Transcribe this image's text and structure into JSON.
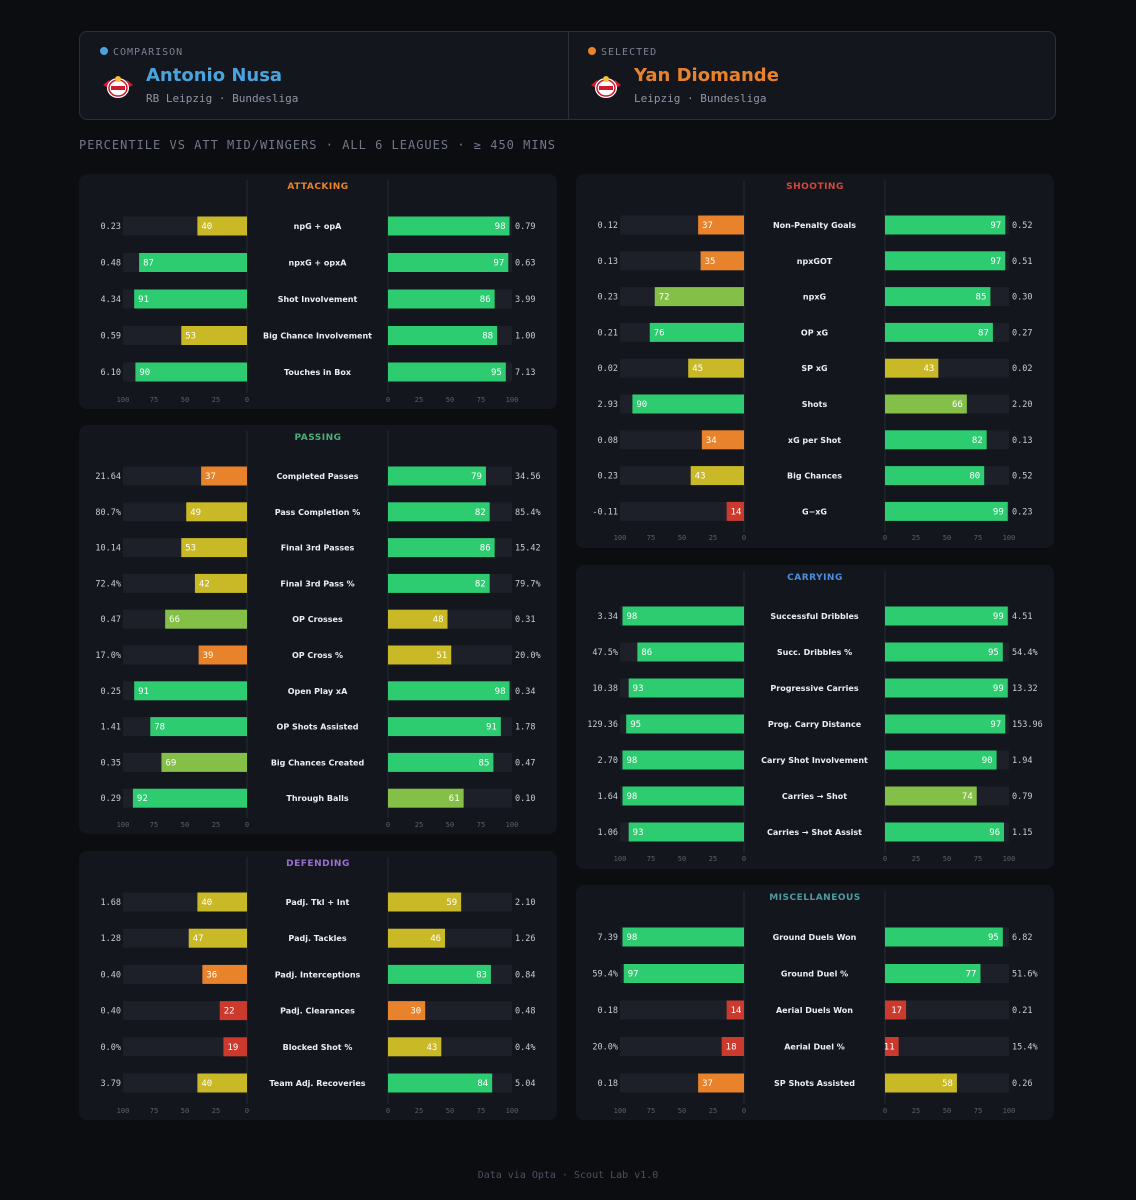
{
  "header": {
    "comparison": {
      "tag": "COMPARISON",
      "name": "Antonio Nusa",
      "club": "RB Leipzig · Bundesliga",
      "color": "#4ba3dd"
    },
    "selected": {
      "tag": "SELECTED",
      "name": "Yan Diomande",
      "club": "Leipzig · Bundesliga",
      "color": "#e8832b"
    },
    "logo_icon": "rb-leipzig-crest-icon"
  },
  "subtitle": "PERCENTILE VS ATT MID/WINGERS · ALL 6 LEAGUES · ≥ 450 MINS",
  "footer": "Data via Opta · Scout Lab v1.0",
  "colors": {
    "green": "#2ecc71",
    "lime": "#84bf48",
    "yellow": "#c9b926",
    "orange": "#e8832b",
    "red": "#cc3a2e",
    "track": "#1d2029",
    "panel": "#13161c"
  },
  "chart_data": [
    {
      "type": "bar",
      "id": "attacking",
      "title": "ATTACKING",
      "title_color": "#e8832b",
      "xlim": [
        0,
        100
      ],
      "xticks": [
        100,
        75,
        50,
        25,
        0
      ],
      "metrics": [
        {
          "label": "npG + opA",
          "left_value": "0.23",
          "left_pct": 40,
          "right_pct": 98,
          "right_value": "0.79"
        },
        {
          "label": "npxG + opxA",
          "left_value": "0.48",
          "left_pct": 87,
          "right_pct": 97,
          "right_value": "0.63"
        },
        {
          "label": "Shot Involvement",
          "left_value": "4.34",
          "left_pct": 91,
          "right_pct": 86,
          "right_value": "3.99"
        },
        {
          "label": "Big Chance Involvement",
          "left_value": "0.59",
          "left_pct": 53,
          "right_pct": 88,
          "right_value": "1.00"
        },
        {
          "label": "Touches in Box",
          "left_value": "6.10",
          "left_pct": 90,
          "right_pct": 95,
          "right_value": "7.13"
        }
      ]
    },
    {
      "type": "bar",
      "id": "passing",
      "title": "PASSING",
      "title_color": "#4caf78",
      "xlim": [
        0,
        100
      ],
      "xticks": [
        100,
        75,
        50,
        25,
        0
      ],
      "metrics": [
        {
          "label": "Completed Passes",
          "left_value": "21.64",
          "left_pct": 37,
          "right_pct": 79,
          "right_value": "34.56"
        },
        {
          "label": "Pass Completion %",
          "left_value": "80.7%",
          "left_pct": 49,
          "right_pct": 82,
          "right_value": "85.4%"
        },
        {
          "label": "Final 3rd Passes",
          "left_value": "10.14",
          "left_pct": 53,
          "right_pct": 86,
          "right_value": "15.42"
        },
        {
          "label": "Final 3rd Pass %",
          "left_value": "72.4%",
          "left_pct": 42,
          "right_pct": 82,
          "right_value": "79.7%"
        },
        {
          "label": "OP Crosses",
          "left_value": "0.47",
          "left_pct": 66,
          "right_pct": 48,
          "right_value": "0.31"
        },
        {
          "label": "OP Cross %",
          "left_value": "17.0%",
          "left_pct": 39,
          "right_pct": 51,
          "right_value": "20.0%"
        },
        {
          "label": "Open Play xA",
          "left_value": "0.25",
          "left_pct": 91,
          "right_pct": 98,
          "right_value": "0.34"
        },
        {
          "label": "OP Shots Assisted",
          "left_value": "1.41",
          "left_pct": 78,
          "right_pct": 91,
          "right_value": "1.78"
        },
        {
          "label": "Big Chances Created",
          "left_value": "0.35",
          "left_pct": 69,
          "right_pct": 85,
          "right_value": "0.47"
        },
        {
          "label": "Through Balls",
          "left_value": "0.29",
          "left_pct": 92,
          "right_pct": 61,
          "right_value": "0.10"
        }
      ]
    },
    {
      "type": "bar",
      "id": "defending",
      "title": "DEFENDING",
      "title_color": "#9a6fd3",
      "xlim": [
        0,
        100
      ],
      "xticks": [
        100,
        75,
        50,
        25,
        0
      ],
      "metrics": [
        {
          "label": "Padj. Tkl + Int",
          "left_value": "1.68",
          "left_pct": 40,
          "right_pct": 59,
          "right_value": "2.10"
        },
        {
          "label": "Padj. Tackles",
          "left_value": "1.28",
          "left_pct": 47,
          "right_pct": 46,
          "right_value": "1.26"
        },
        {
          "label": "Padj. Interceptions",
          "left_value": "0.40",
          "left_pct": 36,
          "right_pct": 83,
          "right_value": "0.84"
        },
        {
          "label": "Padj. Clearances",
          "left_value": "0.40",
          "left_pct": 22,
          "right_pct": 30,
          "right_value": "0.48"
        },
        {
          "label": "Blocked Shot %",
          "left_value": "0.0%",
          "left_pct": 19,
          "right_pct": 43,
          "right_value": "0.4%"
        },
        {
          "label": "Team Adj. Recoveries",
          "left_value": "3.79",
          "left_pct": 40,
          "right_pct": 84,
          "right_value": "5.04"
        }
      ]
    },
    {
      "type": "bar",
      "id": "shooting",
      "title": "SHOOTING",
      "title_color": "#d2483c",
      "xlim": [
        0,
        100
      ],
      "xticks": [
        100,
        75,
        50,
        25,
        0
      ],
      "metrics": [
        {
          "label": "Non-Penalty Goals",
          "left_value": "0.12",
          "left_pct": 37,
          "right_pct": 97,
          "right_value": "0.52"
        },
        {
          "label": "npxGOT",
          "left_value": "0.13",
          "left_pct": 35,
          "right_pct": 97,
          "right_value": "0.51"
        },
        {
          "label": "npxG",
          "left_value": "0.23",
          "left_pct": 72,
          "right_pct": 85,
          "right_value": "0.30"
        },
        {
          "label": "OP xG",
          "left_value": "0.21",
          "left_pct": 76,
          "right_pct": 87,
          "right_value": "0.27"
        },
        {
          "label": "SP xG",
          "left_value": "0.02",
          "left_pct": 45,
          "right_pct": 43,
          "right_value": "0.02"
        },
        {
          "label": "Shots",
          "left_value": "2.93",
          "left_pct": 90,
          "right_pct": 66,
          "right_value": "2.20"
        },
        {
          "label": "xG per Shot",
          "left_value": "0.08",
          "left_pct": 34,
          "right_pct": 82,
          "right_value": "0.13"
        },
        {
          "label": "Big Chances",
          "left_value": "0.23",
          "left_pct": 43,
          "right_pct": 80,
          "right_value": "0.52"
        },
        {
          "label": "G−xG",
          "left_value": "-0.11",
          "left_pct": 14,
          "right_pct": 99,
          "right_value": "0.23"
        }
      ]
    },
    {
      "type": "bar",
      "id": "carrying",
      "title": "CARRYING",
      "title_color": "#4a8fe0",
      "xlim": [
        0,
        100
      ],
      "xticks": [
        100,
        75,
        50,
        25,
        0
      ],
      "metrics": [
        {
          "label": "Successful Dribbles",
          "left_value": "3.34",
          "left_pct": 98,
          "right_pct": 99,
          "right_value": "4.51"
        },
        {
          "label": "Succ. Dribbles %",
          "left_value": "47.5%",
          "left_pct": 86,
          "right_pct": 95,
          "right_value": "54.4%"
        },
        {
          "label": "Progressive Carries",
          "left_value": "10.38",
          "left_pct": 93,
          "right_pct": 99,
          "right_value": "13.32"
        },
        {
          "label": "Prog. Carry Distance",
          "left_value": "129.36",
          "left_pct": 95,
          "right_pct": 97,
          "right_value": "153.96"
        },
        {
          "label": "Carry Shot Involvement",
          "left_value": "2.70",
          "left_pct": 98,
          "right_pct": 90,
          "right_value": "1.94"
        },
        {
          "label": "Carries → Shot",
          "left_value": "1.64",
          "left_pct": 98,
          "right_pct": 74,
          "right_value": "0.79"
        },
        {
          "label": "Carries → Shot Assist",
          "left_value": "1.06",
          "left_pct": 93,
          "right_pct": 96,
          "right_value": "1.15"
        }
      ]
    },
    {
      "type": "bar",
      "id": "miscellaneous",
      "title": "MISCELLANEOUS",
      "title_color": "#4f9aa0",
      "xlim": [
        0,
        100
      ],
      "xticks": [
        100,
        75,
        50,
        25,
        0
      ],
      "metrics": [
        {
          "label": "Ground Duels Won",
          "left_value": "7.39",
          "left_pct": 98,
          "right_pct": 95,
          "right_value": "6.82"
        },
        {
          "label": "Ground Duel %",
          "left_value": "59.4%",
          "left_pct": 97,
          "right_pct": 77,
          "right_value": "51.6%"
        },
        {
          "label": "Aerial Duels Won",
          "left_value": "0.18",
          "left_pct": 14,
          "right_pct": 17,
          "right_value": "0.21"
        },
        {
          "label": "Aerial Duel %",
          "left_value": "20.0%",
          "left_pct": 18,
          "right_pct": 11,
          "right_value": "15.4%"
        },
        {
          "label": "SP Shots Assisted",
          "left_value": "0.18",
          "left_pct": 37,
          "right_pct": 58,
          "right_value": "0.26"
        }
      ]
    }
  ]
}
